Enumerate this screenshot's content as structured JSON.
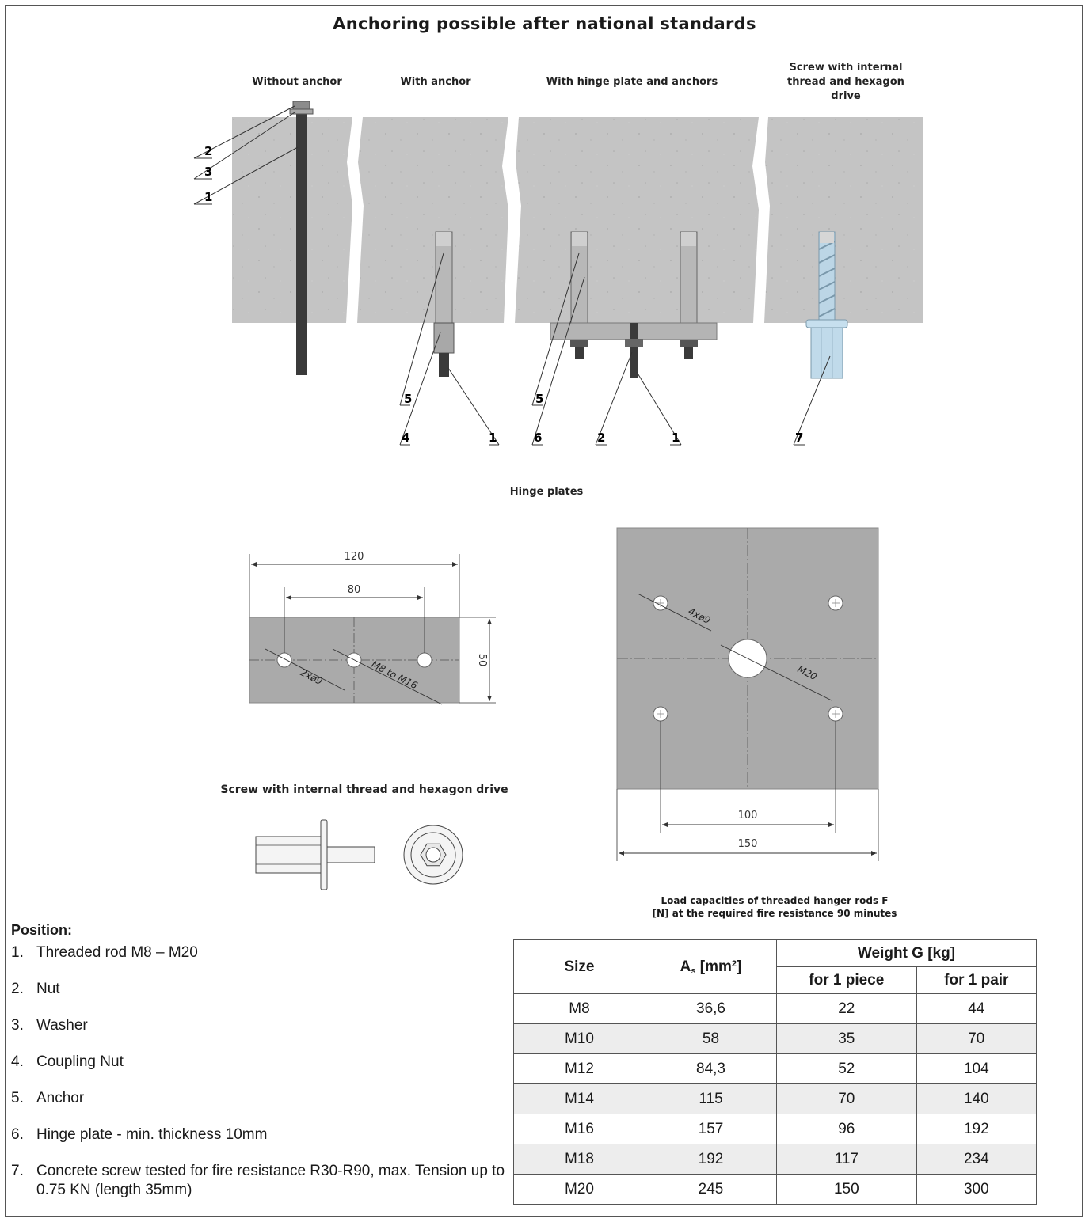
{
  "title": "Anchoring possible after national standards",
  "figure_top": {
    "col_without_anchor": "Without anchor",
    "col_with_anchor": "With anchor",
    "col_hinge_plate": "With hinge plate and anchors",
    "col_screw_line1": "Screw with internal",
    "col_screw_line2": "thread and hexagon",
    "col_screw_line3": "drive",
    "callouts": {
      "c2": "2",
      "c3": "3",
      "c1a": "1",
      "c5a": "5",
      "c4": "4",
      "c1b": "1",
      "c5b": "5",
      "c6": "6",
      "c2b": "2",
      "c1c": "1",
      "c7": "7"
    },
    "colors": {
      "concrete": "#c4c4c4",
      "rod": "#3a3a3a",
      "anchor": "#b8b8b8",
      "screw": "#bcd6e6"
    }
  },
  "hinge_plates": {
    "label": "Hinge plates",
    "small": {
      "dim_120": "120",
      "dim_80": "80",
      "dim_50": "50",
      "holes": "2xø9",
      "thread": "M8 to M16"
    },
    "large": {
      "holes": "4xø9",
      "thread": "M20",
      "dim_100": "100",
      "dim_150": "150"
    },
    "plate_color": "#aaaaaa"
  },
  "screw_figure": {
    "label": "Screw with internal thread and hexagon drive"
  },
  "positions": {
    "heading": "Position:",
    "items": [
      {
        "num": "1.",
        "text": "Threaded rod M8 – M20"
      },
      {
        "num": "2.",
        "text": "Nut"
      },
      {
        "num": "3.",
        "text": "Washer"
      },
      {
        "num": "4.",
        "text": "Coupling Nut"
      },
      {
        "num": "5.",
        "text": "Anchor"
      },
      {
        "num": "6.",
        "text": "Hinge plate - min. thickness 10mm"
      },
      {
        "num": "7.",
        "text": "Concrete screw tested for fire resistance R30-R90, max. Tension up to 0.75 KN (length 35mm)"
      }
    ]
  },
  "load_table": {
    "caption_line1": "Load capacities of threaded hanger rods F",
    "caption_line2": "[N] at the required fire resistance 90 minutes",
    "headers": {
      "size": "Size",
      "as_main": "A",
      "as_sub": "s",
      "as_unit": " [mm",
      "as_sup": "2",
      "as_close": "]",
      "weight": "Weight G [kg]",
      "piece": "for 1 piece",
      "pair": "for 1 pair"
    },
    "rows": [
      [
        "M8",
        "36,6",
        "22",
        "44"
      ],
      [
        "M10",
        "58",
        "35",
        "70"
      ],
      [
        "M12",
        "84,3",
        "52",
        "104"
      ],
      [
        "M14",
        "115",
        "70",
        "140"
      ],
      [
        "M16",
        "157",
        "96",
        "192"
      ],
      [
        "M18",
        "192",
        "117",
        "234"
      ],
      [
        "M20",
        "245",
        "150",
        "300"
      ]
    ]
  }
}
